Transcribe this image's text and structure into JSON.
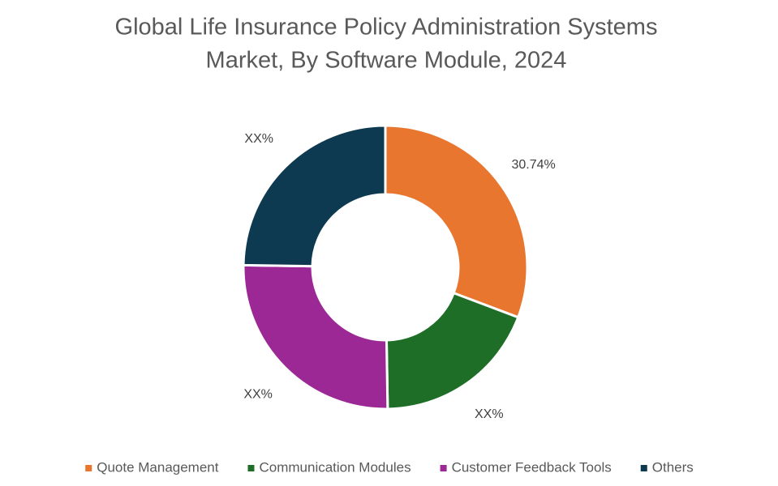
{
  "chart_data": {
    "type": "donut",
    "title": [
      "Global Life Insurance Policy Administration Systems",
      "Market, By Software Module, 2024"
    ],
    "categories": [
      "Quote Management",
      "Communication Modules",
      "Customer Feedback Tools",
      "Others"
    ],
    "values": [
      30.74,
      19.0,
      25.5,
      24.76
    ],
    "value_labels": [
      "30.74%",
      "XX%",
      "XX%",
      "XX%"
    ],
    "colors": [
      "#e8762f",
      "#1e6e28",
      "#9b2895",
      "#0d3a50"
    ],
    "legend": "bottom"
  }
}
